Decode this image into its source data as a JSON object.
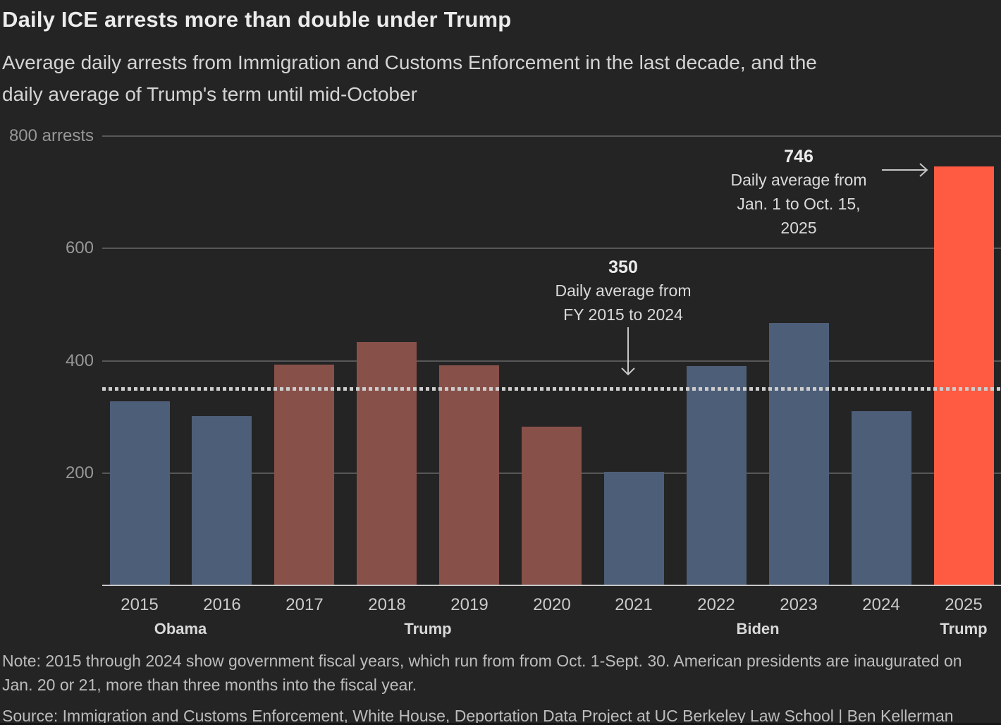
{
  "header": {
    "title": "Daily ICE arrests more than double under Trump",
    "subtitle_lines": [
      "Average daily arrests from Immigration and Customs Enforcement in the last decade, and the",
      "daily average of Trump's term until mid-October"
    ]
  },
  "chart_data": {
    "type": "bar",
    "title": "Daily ICE arrests more than double under Trump",
    "xlabel": "",
    "ylabel": "arrests",
    "ylim": [
      0,
      800
    ],
    "grid": "horizontal",
    "legend": "none",
    "y_ticks": [
      {
        "value": 800,
        "label": "800 arrests"
      },
      {
        "value": 600,
        "label": "600"
      },
      {
        "value": 400,
        "label": "400"
      },
      {
        "value": 200,
        "label": "200"
      }
    ],
    "categories": [
      "2015",
      "2016",
      "2017",
      "2018",
      "2019",
      "2020",
      "2021",
      "2022",
      "2023",
      "2024",
      "2025"
    ],
    "values": [
      328,
      301,
      393,
      433,
      392,
      283,
      202,
      391,
      467,
      310,
      746
    ],
    "bar_color_keys": [
      "blue",
      "blue",
      "brown",
      "brown",
      "brown",
      "brown",
      "blue",
      "blue",
      "blue",
      "blue",
      "orange"
    ],
    "colors": {
      "blue": "#4D5E78",
      "brown": "#87514A",
      "orange": "#FF5B42",
      "background": "#242424",
      "gridline": "#575757",
      "baseline": "#C8C8C8",
      "reference_dotted": "#CDCDCD",
      "arrow": "#C6C6C6"
    },
    "president_groups": [
      {
        "label": "Obama",
        "from": "2015",
        "to": "2016"
      },
      {
        "label": "Trump",
        "from": "2017",
        "to": "2020"
      },
      {
        "label": "Biden",
        "from": "2021",
        "to": "2024"
      },
      {
        "label": "Trump",
        "from": "2025",
        "to": "2025"
      }
    ],
    "reference_line": {
      "value": 350,
      "style": "dotted"
    },
    "annotations": [
      {
        "value_label": "746",
        "lines": [
          "Daily average from",
          "Jan. 1 to Oct. 15,",
          "2025"
        ],
        "arrow": "right",
        "points_to": "2025 bar"
      },
      {
        "value_label": "350",
        "lines": [
          "Daily average from",
          "FY 2015 to 2024"
        ],
        "arrow": "down",
        "points_to": "reference line"
      }
    ]
  },
  "footer": {
    "note_lines": [
      "Note: 2015 through 2024 show government fiscal years, which run from from Oct. 1-Sept. 30. American presidents are inaugurated on",
      "Jan. 20 or 21, more than three months into the fiscal year."
    ],
    "source": "Source: Immigration and Customs Enforcement, White House, Deportation Data Project at UC Berkeley Law School | Ben Kellerman"
  }
}
